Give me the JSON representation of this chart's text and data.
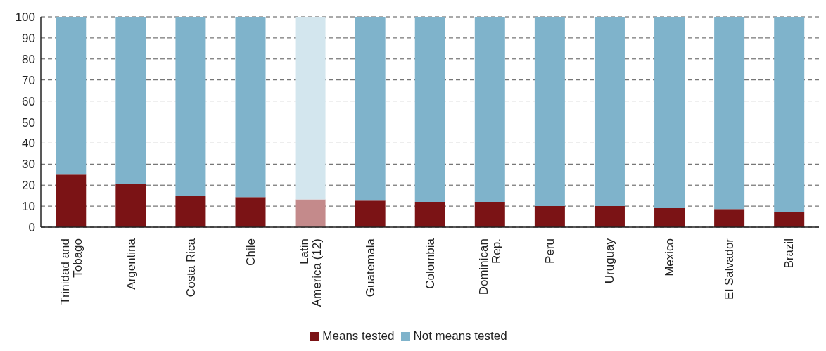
{
  "chart_data": {
    "type": "bar",
    "stacked": true,
    "categories": [
      "Trinidad and Tobago",
      "Argentina",
      "Costa Rica",
      "Chile",
      "Latin America (12)",
      "Guatemala",
      "Colombia",
      "Dominican Rep.",
      "Peru",
      "Uruguay",
      "Mexico",
      "El Salvador",
      "Brazil"
    ],
    "series": [
      {
        "name": "Means tested",
        "color": "#7b1315",
        "colors": [
          "#7b1315",
          "#7b1315",
          "#7b1315",
          "#7b1315",
          "#c48a8b",
          "#7b1315",
          "#7b1315",
          "#7b1315",
          "#7b1315",
          "#7b1315",
          "#7b1315",
          "#7b1315",
          "#7b1315"
        ],
        "values": [
          25,
          20.6,
          14.7,
          14.3,
          13.2,
          12.6,
          12,
          12,
          10,
          10,
          9.3,
          8.6,
          7.3
        ]
      },
      {
        "name": "Not means tested",
        "color": "#7fb3cb",
        "colors": [
          "#7fb3cb",
          "#7fb3cb",
          "#7fb3cb",
          "#7fb3cb",
          "#d3e6ee",
          "#7fb3cb",
          "#7fb3cb",
          "#7fb3cb",
          "#7fb3cb",
          "#7fb3cb",
          "#7fb3cb",
          "#7fb3cb",
          "#7fb3cb"
        ],
        "values": [
          75,
          79.4,
          85.3,
          85.7,
          86.8,
          87.4,
          88,
          88,
          90,
          90,
          90.7,
          91.4,
          92.7
        ]
      }
    ],
    "ylim": [
      0,
      100
    ],
    "yticks": [
      0,
      10,
      20,
      30,
      40,
      50,
      60,
      70,
      80,
      90,
      100
    ],
    "grid": "y",
    "legend": "bottom"
  }
}
